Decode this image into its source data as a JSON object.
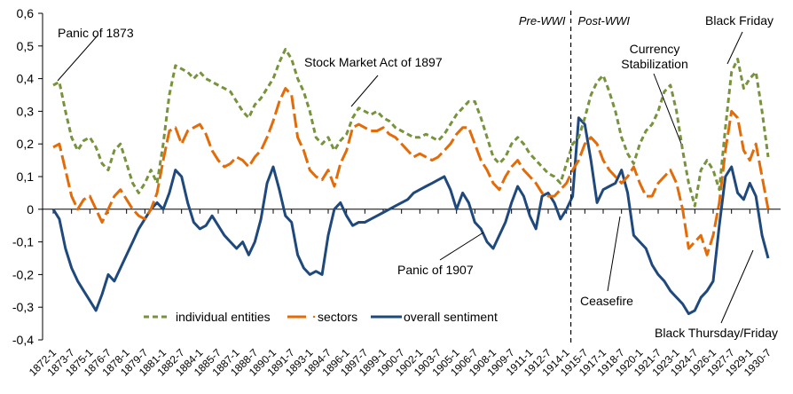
{
  "chart_data": {
    "type": "line",
    "title": "",
    "xlabel": "",
    "ylabel": "",
    "ylim": [
      -0.4,
      0.6
    ],
    "yticks": [
      0.6,
      0.5,
      0.4,
      0.3,
      0.2,
      0.1,
      0,
      -0.1,
      -0.2,
      -0.3,
      -0.4
    ],
    "ytick_labels": [
      "0,6",
      "0,5",
      "0,4",
      "0,3",
      "0,2",
      "0,1",
      "0",
      "-0,1",
      "-0,2",
      "-0,3",
      "-0,4"
    ],
    "xtick_labels": [
      "1872-1",
      "1873-7",
      "1875-1",
      "1876-7",
      "1878-1",
      "1879-7",
      "1881-1",
      "1882-7",
      "1884-1",
      "1885-7",
      "1887-1",
      "1888-7",
      "1890-1",
      "1891-7",
      "1893-1",
      "1894-7",
      "1896-1",
      "1897-7",
      "1899-1",
      "1900-7",
      "1902-1",
      "1903-7",
      "1905-1",
      "1906-7",
      "1908-1",
      "1909-7",
      "1911-1",
      "1912-7",
      "1914-1",
      "1915-7",
      "1917-1",
      "1918-7",
      "1920-1",
      "1921-7",
      "1923-1",
      "1924-7",
      "1926-1",
      "1927-7",
      "1929-1",
      "1930-7"
    ],
    "x_start": 1872.0,
    "x_step": 0.5,
    "grid": false,
    "legend_position": "bottom-center",
    "series": [
      {
        "name": "individual entities",
        "color": "#77933C",
        "style": "dashed",
        "values": [
          0.38,
          0.39,
          0.3,
          0.22,
          0.18,
          0.21,
          0.22,
          0.19,
          0.14,
          0.12,
          0.18,
          0.2,
          0.14,
          0.08,
          0.05,
          0.08,
          0.12,
          0.08,
          0.2,
          0.35,
          0.44,
          0.43,
          0.42,
          0.4,
          0.42,
          0.4,
          0.39,
          0.38,
          0.37,
          0.36,
          0.33,
          0.3,
          0.28,
          0.32,
          0.34,
          0.37,
          0.4,
          0.45,
          0.49,
          0.46,
          0.4,
          0.36,
          0.3,
          0.22,
          0.2,
          0.22,
          0.18,
          0.21,
          0.23,
          0.28,
          0.31,
          0.3,
          0.29,
          0.3,
          0.28,
          0.27,
          0.25,
          0.24,
          0.23,
          0.22,
          0.22,
          0.23,
          0.22,
          0.21,
          0.23,
          0.26,
          0.29,
          0.31,
          0.33,
          0.33,
          0.28,
          0.22,
          0.16,
          0.14,
          0.16,
          0.2,
          0.22,
          0.2,
          0.17,
          0.15,
          0.13,
          0.11,
          0.1,
          0.08,
          0.14,
          0.2,
          0.22,
          0.28,
          0.35,
          0.39,
          0.41,
          0.36,
          0.3,
          0.22,
          0.17,
          0.14,
          0.2,
          0.24,
          0.26,
          0.3,
          0.36,
          0.38,
          0.3,
          0.18,
          0.08,
          0.01,
          0.12,
          0.15,
          0.12,
          0.06,
          0.25,
          0.42,
          0.46,
          0.37,
          0.4,
          0.42,
          0.3,
          0.16
        ]
      },
      {
        "name": "sectors",
        "color": "#E36C09",
        "style": "longdash",
        "values": [
          0.19,
          0.2,
          0.12,
          0.04,
          0.0,
          0.03,
          0.04,
          0.0,
          -0.04,
          0.0,
          0.04,
          0.06,
          0.03,
          0.0,
          -0.02,
          -0.03,
          0.0,
          0.05,
          0.15,
          0.24,
          0.25,
          0.2,
          0.24,
          0.25,
          0.26,
          0.23,
          0.18,
          0.15,
          0.13,
          0.14,
          0.16,
          0.15,
          0.13,
          0.16,
          0.18,
          0.22,
          0.27,
          0.33,
          0.37,
          0.35,
          0.22,
          0.18,
          0.12,
          0.1,
          0.09,
          0.12,
          0.07,
          0.14,
          0.18,
          0.25,
          0.26,
          0.25,
          0.24,
          0.24,
          0.25,
          0.23,
          0.22,
          0.2,
          0.18,
          0.16,
          0.17,
          0.16,
          0.15,
          0.16,
          0.18,
          0.2,
          0.23,
          0.25,
          0.25,
          0.2,
          0.15,
          0.12,
          0.08,
          0.06,
          0.1,
          0.13,
          0.15,
          0.12,
          0.1,
          0.08,
          0.05,
          0.04,
          0.04,
          0.06,
          0.08,
          0.12,
          0.15,
          0.2,
          0.22,
          0.2,
          0.15,
          0.12,
          0.1,
          0.08,
          0.1,
          0.13,
          0.08,
          0.04,
          0.04,
          0.08,
          0.1,
          0.12,
          0.08,
          0.0,
          -0.12,
          -0.1,
          -0.08,
          -0.14,
          -0.08,
          0.02,
          0.18,
          0.3,
          0.28,
          0.18,
          0.15,
          0.2,
          0.1,
          0.0
        ]
      },
      {
        "name": "overall sentiment",
        "color": "#1F497D",
        "style": "solid",
        "values": [
          0.0,
          -0.03,
          -0.12,
          -0.18,
          -0.22,
          -0.25,
          -0.28,
          -0.31,
          -0.26,
          -0.2,
          -0.22,
          -0.18,
          -0.14,
          -0.1,
          -0.06,
          -0.03,
          0.0,
          0.02,
          0.0,
          0.05,
          0.12,
          0.1,
          0.02,
          -0.04,
          -0.06,
          -0.05,
          -0.02,
          -0.05,
          -0.08,
          -0.1,
          -0.12,
          -0.1,
          -0.14,
          -0.1,
          -0.03,
          0.08,
          0.13,
          0.06,
          -0.02,
          -0.04,
          -0.14,
          -0.18,
          -0.2,
          -0.19,
          -0.2,
          -0.08,
          0.0,
          0.02,
          -0.02,
          -0.05,
          -0.04,
          -0.04,
          -0.03,
          -0.02,
          -0.01,
          0.0,
          0.01,
          0.02,
          0.03,
          0.05,
          0.06,
          0.07,
          0.08,
          0.09,
          0.1,
          0.06,
          0.0,
          0.05,
          0.02,
          -0.04,
          -0.06,
          -0.1,
          -0.12,
          -0.08,
          -0.04,
          0.02,
          0.07,
          0.04,
          -0.02,
          -0.06,
          0.04,
          0.05,
          0.02,
          -0.03,
          0.0,
          0.04,
          0.28,
          0.26,
          0.15,
          0.02,
          0.06,
          0.07,
          0.08,
          0.12,
          0.05,
          -0.08,
          -0.1,
          -0.12,
          -0.17,
          -0.2,
          -0.22,
          -0.25,
          -0.27,
          -0.29,
          -0.32,
          -0.31,
          -0.27,
          -0.25,
          -0.22,
          -0.05,
          0.1,
          0.13,
          0.05,
          0.03,
          0.08,
          0.04,
          -0.08,
          -0.15
        ]
      }
    ],
    "annotations": [
      {
        "text": "Panic of 1873",
        "x": 1872.5
      },
      {
        "text": "Stock Market Act of 1897",
        "x": 1897.3
      },
      {
        "text": "Panic of 1907",
        "x": 1907.8
      },
      {
        "text": "Ceasefire",
        "x": 1918.9
      },
      {
        "text": "Currency Stabilization",
        "x": 1923.9
      },
      {
        "text": "Black Friday",
        "x": 1927.3
      },
      {
        "text": "Black Thursday/Friday",
        "x": 1929.8
      }
    ],
    "period_divider": {
      "x": 1914.5,
      "left_label": "Pre-WWI",
      "right_label": "Post-WWI"
    }
  }
}
